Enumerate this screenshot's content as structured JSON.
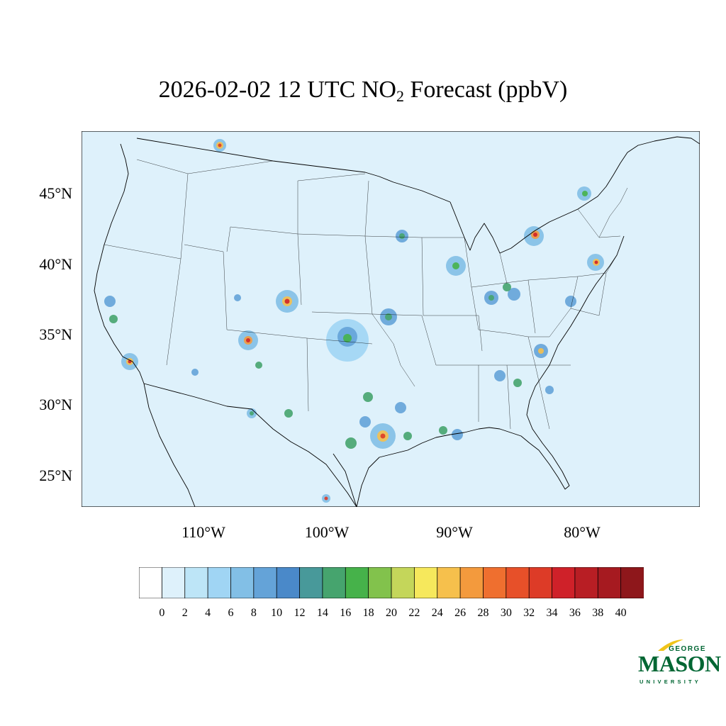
{
  "title": {
    "prefix": "2026-02-02 12 UTC NO",
    "subscript": "2",
    "suffix": " Forecast (ppbV)"
  },
  "axes": {
    "lat_labels": [
      "45°N",
      "40°N",
      "35°N",
      "30°N",
      "25°N"
    ],
    "lon_labels": [
      "110°W",
      "100°W",
      "90°W",
      "80°W"
    ]
  },
  "colorbar": {
    "ticks": [
      "0",
      "2",
      "4",
      "6",
      "8",
      "10",
      "12",
      "14",
      "16",
      "18",
      "20",
      "22",
      "24",
      "26",
      "28",
      "30",
      "32",
      "34",
      "36",
      "38",
      "40"
    ],
    "colors": [
      "#ffffff",
      "#def1fb",
      "#bde5f7",
      "#a0d5f4",
      "#82bfe6",
      "#64a3d8",
      "#4a89c9",
      "#48999a",
      "#46a46e",
      "#46b24a",
      "#82c24c",
      "#c4d65a",
      "#f6e85c",
      "#f6c04c",
      "#f39a3d",
      "#ef6f2f",
      "#e75029",
      "#dd3b27",
      "#cf2129",
      "#b81e24",
      "#a61a20",
      "#8e171b"
    ]
  },
  "logo": {
    "line1": "GEORGE",
    "line2": "MASON",
    "line3": "UNIVERSITY",
    "color": "#006633"
  }
}
